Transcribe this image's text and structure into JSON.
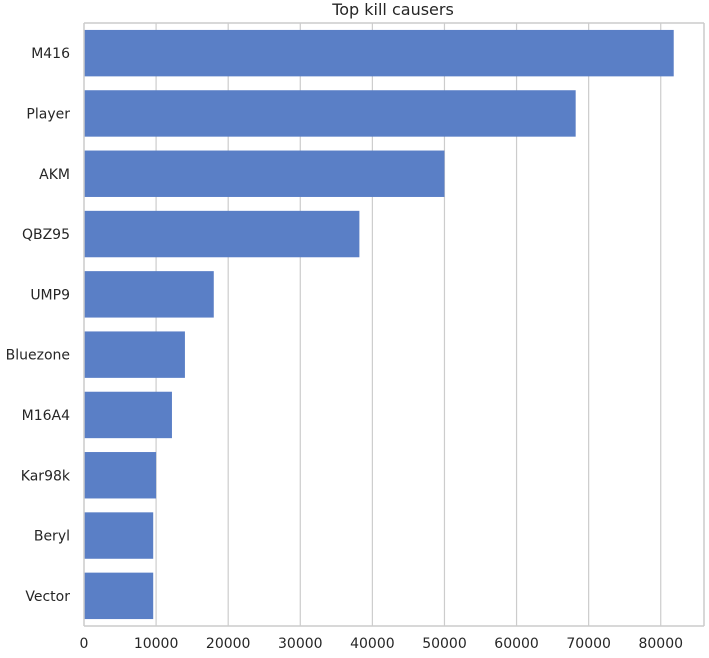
{
  "chart_data": {
    "type": "bar",
    "orientation": "horizontal",
    "title": "Top kill causers",
    "xlabel": "",
    "ylabel": "",
    "categories": [
      "M416",
      "Player",
      "AKM",
      "QBZ95",
      "UMP9",
      "Bluezone",
      "M16A4",
      "Kar98k",
      "Beryl",
      "Vector"
    ],
    "values": [
      81800,
      68200,
      50000,
      38200,
      18000,
      14000,
      12200,
      10000,
      9600,
      9600
    ],
    "xlim": [
      0,
      86000
    ],
    "xticks": [
      0,
      10000,
      20000,
      30000,
      40000,
      50000,
      60000,
      70000,
      80000
    ],
    "xtick_labels": [
      "0",
      "10000",
      "20000",
      "30000",
      "40000",
      "50000",
      "60000",
      "70000",
      "80000"
    ],
    "grid": "vertical",
    "legend": "none",
    "bar_color": "#5a7fc6",
    "grid_color": "#cccccc",
    "text_color": "#262626"
  }
}
